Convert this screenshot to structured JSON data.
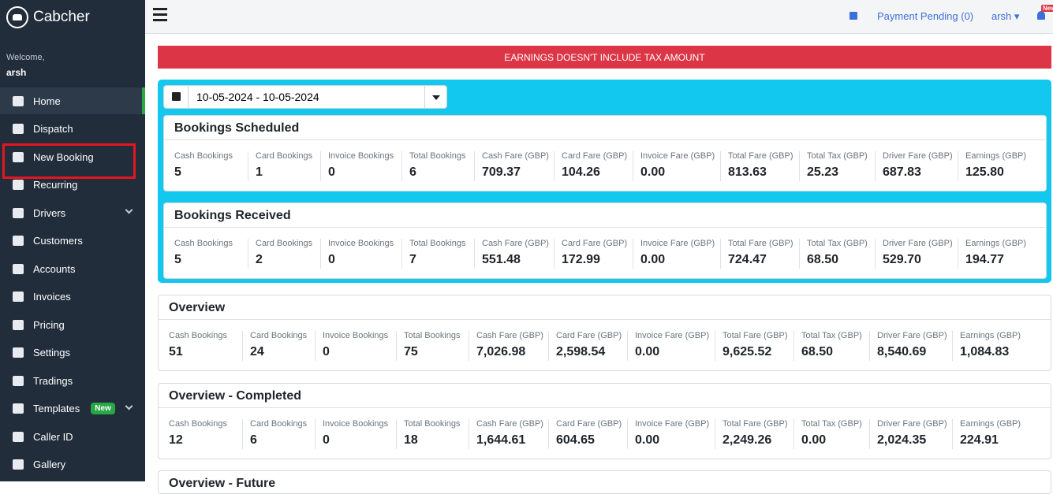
{
  "brand": "Cabcher",
  "welcome": "Welcome,",
  "user": "arsh",
  "nav": [
    {
      "label": "Home"
    },
    {
      "label": "Dispatch"
    },
    {
      "label": "New Booking"
    },
    {
      "label": "Recurring"
    },
    {
      "label": "Drivers"
    },
    {
      "label": "Customers"
    },
    {
      "label": "Accounts"
    },
    {
      "label": "Invoices"
    },
    {
      "label": "Pricing"
    },
    {
      "label": "Settings"
    },
    {
      "label": "Tradings"
    },
    {
      "label": "Templates",
      "badge": "New"
    },
    {
      "label": "Caller ID"
    },
    {
      "label": "Gallery"
    }
  ],
  "header": {
    "payment": "Payment Pending (0)",
    "user": "arsh",
    "bell_badge": "New"
  },
  "alert": "EARNINGS DOESN'T INCLUDE TAX AMOUNT",
  "date_range": "10-05-2024 - 10-05-2024",
  "columns": [
    "Cash Bookings",
    "Card Bookings",
    "Invoice Bookings",
    "Total Bookings",
    "Cash Fare (GBP)",
    "Card Fare (GBP)",
    "Invoice Fare (GBP)",
    "Total Fare (GBP)",
    "Total Tax (GBP)",
    "Driver Fare (GBP)",
    "Earnings (GBP)"
  ],
  "cards": [
    {
      "title": "Bookings Scheduled",
      "values": [
        "5",
        "1",
        "0",
        "6",
        "709.37",
        "104.26",
        "0.00",
        "813.63",
        "25.23",
        "687.83",
        "125.80"
      ]
    },
    {
      "title": "Bookings Received",
      "values": [
        "5",
        "2",
        "0",
        "7",
        "551.48",
        "172.99",
        "0.00",
        "724.47",
        "68.50",
        "529.70",
        "194.77"
      ]
    },
    {
      "title": "Overview",
      "values": [
        "51",
        "24",
        "0",
        "75",
        "7,026.98",
        "2,598.54",
        "0.00",
        "9,625.52",
        "68.50",
        "8,540.69",
        "1,084.83"
      ]
    },
    {
      "title": "Overview - Completed",
      "values": [
        "12",
        "6",
        "0",
        "18",
        "1,644.61",
        "604.65",
        "0.00",
        "2,249.26",
        "0.00",
        "2,024.35",
        "224.91"
      ]
    },
    {
      "title": "Overview - Future"
    }
  ]
}
